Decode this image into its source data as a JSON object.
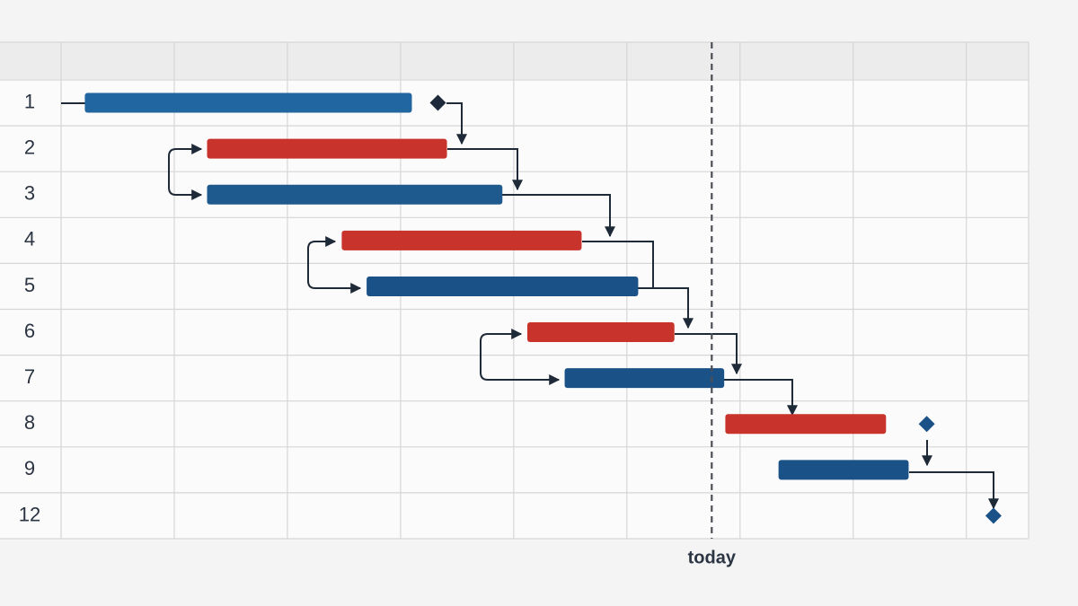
{
  "chart_data": {
    "type": "gantt",
    "xlim": [
      0,
      8.55
    ],
    "tasks": [
      {
        "name": "1",
        "start": 0.21,
        "end": 3.1,
        "color": "#2166a0",
        "milestone": 3.33,
        "milestone_color": "#1e2a3a"
      },
      {
        "name": "2",
        "start": 1.29,
        "end": 3.41,
        "color": "#c8342b"
      },
      {
        "name": "3",
        "start": 1.29,
        "end": 3.9,
        "color": "#1f5a8f"
      },
      {
        "name": "4",
        "start": 2.48,
        "end": 4.6,
        "color": "#c8342b"
      },
      {
        "name": "5",
        "start": 2.7,
        "end": 5.1,
        "color": "#1a5288"
      },
      {
        "name": "6",
        "start": 4.12,
        "end": 5.42,
        "color": "#c8342b"
      },
      {
        "name": "7",
        "start": 4.45,
        "end": 5.86,
        "color": "#1a5288"
      },
      {
        "name": "8",
        "start": 5.87,
        "end": 7.29,
        "color": "#c8342b",
        "milestone": 7.65,
        "milestone_color": "#1a5288"
      },
      {
        "name": "9",
        "start": 6.34,
        "end": 7.49,
        "color": "#1a5288"
      },
      {
        "name": "12",
        "start": null,
        "end": null,
        "milestone": 8.24,
        "milestone_color": "#1a5288"
      }
    ],
    "today": {
      "label": "today",
      "x": 5.75
    }
  }
}
